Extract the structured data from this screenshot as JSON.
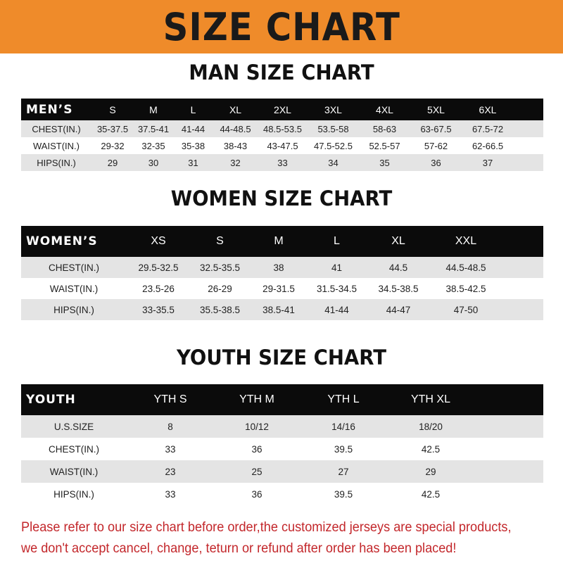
{
  "title": "SIZE CHART",
  "men": {
    "title": "MAN SIZE CHART",
    "header": [
      "MEN’S",
      "S",
      "M",
      "L",
      "XL",
      "2XL",
      "3XL",
      "4XL",
      "5XL",
      "6XL"
    ],
    "rows": [
      [
        "CHEST(IN.)",
        "35-37.5",
        "37.5-41",
        "41-44",
        "44-48.5",
        "48.5-53.5",
        "53.5-58",
        "58-63",
        "63-67.5",
        "67.5-72"
      ],
      [
        "WAIST(IN.)",
        "29-32",
        "32-35",
        "35-38",
        "38-43",
        "43-47.5",
        "47.5-52.5",
        "52.5-57",
        "57-62",
        "62-66.5"
      ],
      [
        "HIPS(IN.)",
        "29",
        "30",
        "31",
        "32",
        "33",
        "34",
        "35",
        "36",
        "37"
      ]
    ]
  },
  "women": {
    "title": "WOMEN SIZE CHART",
    "header": [
      "WOMEN’S",
      "XS",
      "S",
      "M",
      "L",
      "XL",
      "XXL"
    ],
    "rows": [
      [
        "CHEST(IN.)",
        "29.5-32.5",
        "32.5-35.5",
        "38",
        "41",
        "44.5",
        "44.5-48.5"
      ],
      [
        "WAIST(IN.)",
        "23.5-26",
        "26-29",
        "29-31.5",
        "31.5-34.5",
        "34.5-38.5",
        "38.5-42.5"
      ],
      [
        "HIPS(IN.)",
        "33-35.5",
        "35.5-38.5",
        "38.5-41",
        "41-44",
        "44-47",
        "47-50"
      ]
    ]
  },
  "youth": {
    "title": "YOUTH SIZE CHART",
    "header": [
      "YOUTH",
      "YTH S",
      "YTH M",
      "YTH L",
      "YTH XL"
    ],
    "rows": [
      [
        "U.S.SIZE",
        "8",
        "10/12",
        "14/16",
        "18/20"
      ],
      [
        "CHEST(IN.)",
        "33",
        "36",
        "39.5",
        "42.5"
      ],
      [
        "WAIST(IN.)",
        "23",
        "25",
        "27",
        "29"
      ],
      [
        "HIPS(IN.)",
        "33",
        "36",
        "39.5",
        "42.5"
      ]
    ]
  },
  "note": {
    "line1": "Please refer to our size chart before order,the customized jerseys are special products,",
    "line2": "we don't accept cancel, change, teturn or refund after order has been placed!"
  },
  "colors": {
    "banner": "#ef8b2a",
    "header_row": "#0b0b0b",
    "stripe": "#e4e4e4",
    "note": "#c3272b"
  }
}
